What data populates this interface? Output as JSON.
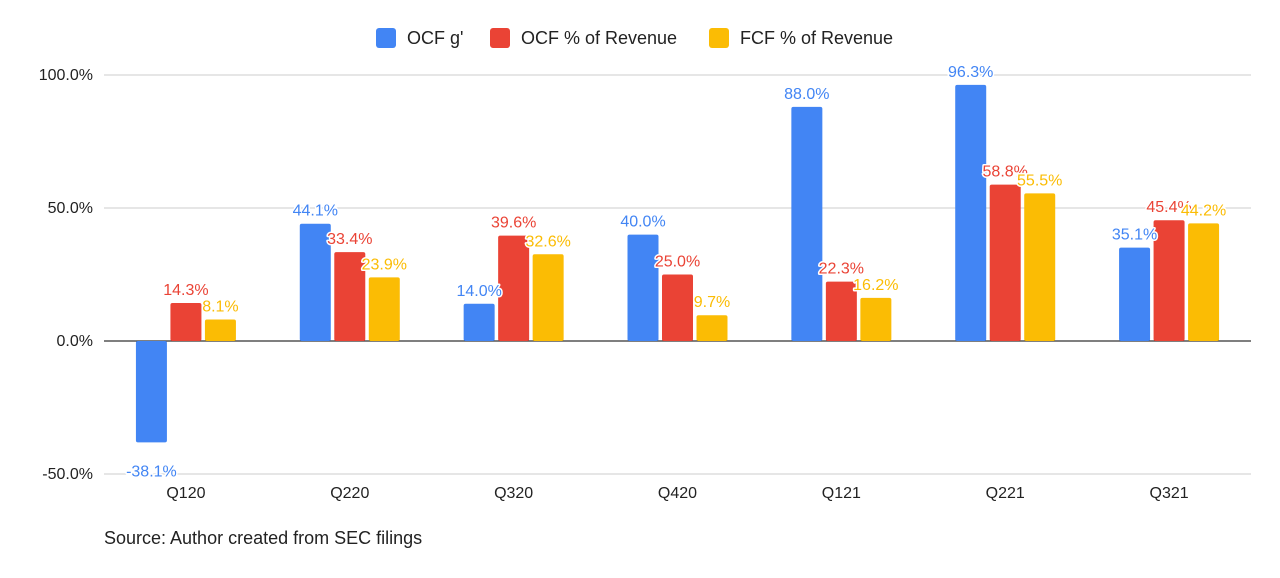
{
  "chart_data": {
    "type": "bar",
    "categories": [
      "Q120",
      "Q220",
      "Q320",
      "Q420",
      "Q121",
      "Q221",
      "Q321"
    ],
    "series": [
      {
        "name": "OCF g'",
        "color": "#4285F4",
        "values": [
          -38.1,
          44.1,
          14.0,
          40.0,
          88.0,
          96.3,
          35.1
        ],
        "labels": [
          "-38.1%",
          "44.1%",
          "14.0%",
          "40.0%",
          "88.0%",
          "96.3%",
          "35.1%"
        ]
      },
      {
        "name": "OCF % of Revenue",
        "color": "#EA4335",
        "values": [
          14.3,
          33.4,
          39.6,
          25.0,
          22.3,
          58.8,
          45.4
        ],
        "labels": [
          "14.3%",
          "33.4%",
          "39.6%",
          "25.0%",
          "22.3%",
          "58.8%",
          "45.4%"
        ]
      },
      {
        "name": "FCF % of Revenue",
        "color": "#FBBC04",
        "values": [
          8.1,
          23.9,
          32.6,
          9.7,
          16.2,
          55.5,
          44.2
        ],
        "labels": [
          "8.1%",
          "23.9%",
          "32.6%",
          "9.7%",
          "16.2%",
          "55.5%",
          "44.2%"
        ]
      }
    ],
    "y_ticks": [
      -50,
      0,
      50,
      100
    ],
    "y_tick_labels": [
      "-50.0%",
      "0.0%",
      "50.0%",
      "100.0%"
    ],
    "ylim": [
      -50,
      100
    ],
    "title": "",
    "xlabel": "",
    "ylabel": "",
    "legend_position": "top-center",
    "grid": true
  },
  "footer": {
    "source_note": "Source: Author created from SEC filings"
  }
}
